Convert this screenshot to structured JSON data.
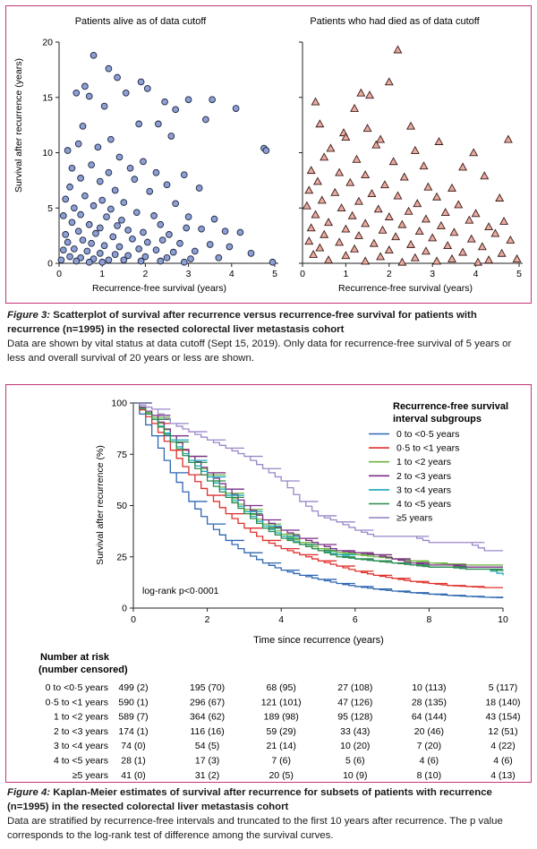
{
  "figure3": {
    "label": "Figure 3:",
    "title": "Scatterplot of survival after recurrence versus recurrence-free survival for patients with recurrence (n=1995) in the resected colorectal liver metastasis cohort",
    "description": "Data are shown by vital status at data cutoff (Sept 15, 2019). Only data for recurrence-free survival of 5 years or less and overall survival of 20 years or less are shown."
  },
  "figure4": {
    "label": "Figure 4:",
    "title": "Kaplan-Meier estimates of survival after recurrence for subsets of patients with recurrence (n=1995) in the resected colorectal liver metastasis cohort",
    "description": "Data are stratified by recurrence-free intervals and truncated to the first 10 years after recurrence. The p value corresponds to the log-rank test of difference among the survival curves."
  },
  "colors": {
    "frame": "#c3347a",
    "alive_fill": "#8e9fd4",
    "dead_fill": "#e9aaa0"
  },
  "chart_data": [
    {
      "type": "scatter",
      "title": "Patients alive as of data cutoff",
      "xlabel": "Recurrence-free survival (years)",
      "ylabel": "Survival after recurrence (years)",
      "xlim": [
        0,
        5
      ],
      "ylim": [
        0,
        20
      ],
      "xticks": [
        0,
        1,
        2,
        3,
        4,
        5
      ],
      "yticks": [
        0,
        5,
        10,
        15,
        20
      ],
      "marker": "circle",
      "points": [
        [
          0.8,
          18.8
        ],
        [
          1.15,
          17.6
        ],
        [
          1.9,
          16.4
        ],
        [
          0.6,
          16.0
        ],
        [
          1.35,
          16.8
        ],
        [
          0.4,
          15.4
        ],
        [
          0.7,
          15.1
        ],
        [
          1.55,
          15.4
        ],
        [
          2.05,
          15.8
        ],
        [
          2.45,
          14.6
        ],
        [
          3.0,
          14.8
        ],
        [
          3.55,
          14.8
        ],
        [
          4.1,
          14.0
        ],
        [
          1.05,
          14.2
        ],
        [
          2.7,
          13.9
        ],
        [
          3.4,
          13.0
        ],
        [
          2.3,
          12.6
        ],
        [
          0.55,
          12.4
        ],
        [
          1.85,
          12.6
        ],
        [
          1.2,
          11.2
        ],
        [
          0.2,
          10.2
        ],
        [
          0.45,
          10.8
        ],
        [
          2.6,
          11.5
        ],
        [
          4.75,
          10.4
        ],
        [
          4.8,
          10.2
        ],
        [
          0.9,
          10.5
        ],
        [
          1.4,
          9.6
        ],
        [
          1.95,
          9.2
        ],
        [
          0.3,
          8.6
        ],
        [
          2.25,
          8.2
        ],
        [
          0.75,
          8.9
        ],
        [
          1.15,
          8.2
        ],
        [
          1.65,
          8.6
        ],
        [
          2.9,
          8.0
        ],
        [
          0.5,
          7.7
        ],
        [
          0.95,
          7.4
        ],
        [
          1.75,
          7.6
        ],
        [
          2.5,
          7.1
        ],
        [
          3.25,
          6.8
        ],
        [
          0.25,
          6.9
        ],
        [
          1.3,
          6.6
        ],
        [
          2.1,
          6.5
        ],
        [
          0.15,
          5.8
        ],
        [
          0.6,
          6.1
        ],
        [
          1.0,
          5.7
        ],
        [
          1.5,
          5.5
        ],
        [
          2.7,
          5.4
        ],
        [
          0.35,
          5.0
        ],
        [
          0.8,
          5.2
        ],
        [
          1.2,
          4.9
        ],
        [
          1.8,
          4.6
        ],
        [
          2.2,
          4.3
        ],
        [
          3.0,
          4.2
        ],
        [
          3.6,
          4.0
        ],
        [
          0.1,
          4.3
        ],
        [
          0.5,
          4.4
        ],
        [
          1.1,
          4.2
        ],
        [
          1.45,
          3.9
        ],
        [
          2.35,
          3.5
        ],
        [
          2.95,
          3.2
        ],
        [
          3.3,
          3.1
        ],
        [
          3.85,
          2.9
        ],
        [
          0.3,
          3.7
        ],
        [
          0.7,
          3.5
        ],
        [
          0.95,
          3.2
        ],
        [
          1.35,
          3.4
        ],
        [
          1.6,
          3.0
        ],
        [
          1.95,
          2.8
        ],
        [
          2.55,
          2.6
        ],
        [
          4.2,
          2.8
        ],
        [
          0.15,
          2.6
        ],
        [
          0.45,
          2.9
        ],
        [
          0.85,
          2.7
        ],
        [
          1.25,
          2.4
        ],
        [
          1.7,
          2.2
        ],
        [
          2.05,
          1.9
        ],
        [
          2.4,
          2.1
        ],
        [
          2.8,
          1.8
        ],
        [
          3.5,
          1.7
        ],
        [
          3.95,
          1.5
        ],
        [
          0.2,
          1.9
        ],
        [
          0.55,
          2.1
        ],
        [
          0.75,
          1.8
        ],
        [
          1.05,
          1.6
        ],
        [
          1.4,
          1.5
        ],
        [
          1.85,
          1.3
        ],
        [
          2.25,
          1.2
        ],
        [
          2.65,
          1.0
        ],
        [
          3.15,
          1.1
        ],
        [
          4.45,
          0.9
        ],
        [
          0.1,
          1.2
        ],
        [
          0.35,
          1.3
        ],
        [
          0.65,
          1.1
        ],
        [
          0.95,
          0.9
        ],
        [
          1.3,
          0.8
        ],
        [
          1.6,
          0.7
        ],
        [
          2.0,
          0.6
        ],
        [
          2.5,
          0.5
        ],
        [
          3.05,
          0.4
        ],
        [
          3.7,
          0.5
        ],
        [
          0.25,
          0.6
        ],
        [
          0.5,
          0.5
        ],
        [
          0.8,
          0.4
        ],
        [
          1.15,
          0.3
        ],
        [
          1.5,
          0.3
        ],
        [
          1.9,
          0.2
        ],
        [
          2.35,
          0.2
        ],
        [
          2.9,
          0.1
        ],
        [
          0.05,
          0.3
        ],
        [
          0.4,
          0.2
        ],
        [
          0.7,
          0.1
        ],
        [
          1.0,
          0.1
        ],
        [
          4.95,
          0.1
        ]
      ]
    },
    {
      "type": "scatter",
      "title": "Patients who had died as of data cutoff",
      "xlabel": "Recurrence-free survival (years)",
      "ylabel": "",
      "xlim": [
        0,
        5
      ],
      "ylim": [
        0,
        20
      ],
      "xticks": [
        0,
        1,
        2,
        3,
        4,
        5
      ],
      "yticks": [
        0,
        5,
        10,
        15,
        20
      ],
      "marker": "triangle",
      "points": [
        [
          2.2,
          19.3
        ],
        [
          2.0,
          16.4
        ],
        [
          1.35,
          15.4
        ],
        [
          1.55,
          15.2
        ],
        [
          0.3,
          14.6
        ],
        [
          1.2,
          14.0
        ],
        [
          0.4,
          12.6
        ],
        [
          1.5,
          12.2
        ],
        [
          2.5,
          12.4
        ],
        [
          0.95,
          11.8
        ],
        [
          1.0,
          11.4
        ],
        [
          1.8,
          11.2
        ],
        [
          3.15,
          11.0
        ],
        [
          4.75,
          11.2
        ],
        [
          0.65,
          10.4
        ],
        [
          1.7,
          10.7
        ],
        [
          2.6,
          10.2
        ],
        [
          3.95,
          10.0
        ],
        [
          0.5,
          9.6
        ],
        [
          1.25,
          9.4
        ],
        [
          2.1,
          9.2
        ],
        [
          2.8,
          8.8
        ],
        [
          3.7,
          8.7
        ],
        [
          0.2,
          8.4
        ],
        [
          0.85,
          8.2
        ],
        [
          1.45,
          8.0
        ],
        [
          2.35,
          7.8
        ],
        [
          4.2,
          7.9
        ],
        [
          0.35,
          7.4
        ],
        [
          1.1,
          7.3
        ],
        [
          1.9,
          7.1
        ],
        [
          2.9,
          6.9
        ],
        [
          3.45,
          6.8
        ],
        [
          0.15,
          6.6
        ],
        [
          0.75,
          6.4
        ],
        [
          1.6,
          6.3
        ],
        [
          2.2,
          6.1
        ],
        [
          3.1,
          6.0
        ],
        [
          4.55,
          5.9
        ],
        [
          0.45,
          5.7
        ],
        [
          1.3,
          5.6
        ],
        [
          2.65,
          5.4
        ],
        [
          3.6,
          5.3
        ],
        [
          0.1,
          5.2
        ],
        [
          0.9,
          5.0
        ],
        [
          1.75,
          4.9
        ],
        [
          2.45,
          4.7
        ],
        [
          3.3,
          4.6
        ],
        [
          4.0,
          4.5
        ],
        [
          0.3,
          4.4
        ],
        [
          1.15,
          4.3
        ],
        [
          2.0,
          4.2
        ],
        [
          2.85,
          4.0
        ],
        [
          3.85,
          3.9
        ],
        [
          4.65,
          3.8
        ],
        [
          0.6,
          3.7
        ],
        [
          1.45,
          3.6
        ],
        [
          2.3,
          3.5
        ],
        [
          3.2,
          3.4
        ],
        [
          4.3,
          3.3
        ],
        [
          0.2,
          3.2
        ],
        [
          1.0,
          3.1
        ],
        [
          1.85,
          3.0
        ],
        [
          2.7,
          2.9
        ],
        [
          3.5,
          2.8
        ],
        [
          4.45,
          2.7
        ],
        [
          0.5,
          2.6
        ],
        [
          1.3,
          2.5
        ],
        [
          2.15,
          2.4
        ],
        [
          3.0,
          2.3
        ],
        [
          3.9,
          2.2
        ],
        [
          4.8,
          2.1
        ],
        [
          0.15,
          2.0
        ],
        [
          0.85,
          1.9
        ],
        [
          1.65,
          1.8
        ],
        [
          2.5,
          1.7
        ],
        [
          3.35,
          1.6
        ],
        [
          4.15,
          1.5
        ],
        [
          0.4,
          1.4
        ],
        [
          1.2,
          1.3
        ],
        [
          2.0,
          1.2
        ],
        [
          2.85,
          1.1
        ],
        [
          3.7,
          1.0
        ],
        [
          4.6,
          0.9
        ],
        [
          0.25,
          0.8
        ],
        [
          1.0,
          0.7
        ],
        [
          1.8,
          0.6
        ],
        [
          2.6,
          0.5
        ],
        [
          3.45,
          0.4
        ],
        [
          4.3,
          0.3
        ],
        [
          4.95,
          0.4
        ],
        [
          0.6,
          0.3
        ],
        [
          1.45,
          0.2
        ],
        [
          2.3,
          0.1
        ],
        [
          3.1,
          0.2
        ],
        [
          4.05,
          0.1
        ]
      ]
    },
    {
      "type": "line",
      "title": "",
      "xlabel": "Time since recurrence (years)",
      "ylabel": "Survival after recurrence (%)",
      "xlim": [
        0,
        10
      ],
      "ylim": [
        0,
        100
      ],
      "xticks": [
        0,
        2,
        4,
        6,
        8,
        10
      ],
      "yticks": [
        0,
        25,
        50,
        75,
        100
      ],
      "legend_title": "Recurrence-free survival interval subgroups",
      "legend_position": "top-right",
      "annotation": "log-rank p<0·0001",
      "x": [
        0,
        0.5,
        1,
        1.5,
        2,
        2.5,
        3,
        3.5,
        4,
        4.5,
        5,
        5.5,
        6,
        6.5,
        7,
        7.5,
        8,
        8.5,
        9,
        9.5,
        10
      ],
      "series": [
        {
          "name": "0 to <0·5 years",
          "color": "#2f67b1",
          "values": [
            100,
            84,
            66,
            52,
            41,
            33,
            27,
            22,
            18.5,
            16,
            14,
            12,
            10.5,
            9.3,
            8.3,
            7.5,
            6.8,
            6.2,
            5.7,
            5.3,
            5
          ]
        },
        {
          "name": "0·5 to <1 years",
          "color": "#e0302b",
          "values": [
            100,
            90,
            77,
            65,
            55,
            46,
            39,
            33,
            29,
            26,
            23,
            20.5,
            18,
            16,
            14.5,
            13,
            12,
            11,
            10.5,
            10,
            10
          ]
        },
        {
          "name": "1 to <2 years",
          "color": "#6db33f",
          "values": [
            100,
            93,
            84,
            74,
            65,
            56,
            48,
            41,
            36,
            32,
            29,
            27,
            26,
            25,
            24,
            23,
            22,
            21.5,
            21,
            21,
            21
          ]
        },
        {
          "name": "2 to <3 years",
          "color": "#7b2f87",
          "values": [
            100,
            94,
            84,
            74,
            66,
            58,
            50,
            43,
            38,
            34,
            31,
            28,
            27,
            26,
            24,
            22,
            21,
            21,
            20,
            20,
            20
          ]
        },
        {
          "name": "3 to <4 years",
          "color": "#1aa9b8",
          "values": [
            100,
            92,
            82,
            72,
            64,
            55,
            47,
            40,
            35,
            31,
            28,
            26,
            24,
            23,
            22,
            21,
            20,
            20,
            19,
            19,
            16
          ]
        },
        {
          "name": "4 to <5 years",
          "color": "#2c8a4a",
          "values": [
            100,
            92,
            81,
            71,
            62,
            54,
            46,
            39,
            34,
            31,
            28,
            25,
            24,
            23,
            22,
            21,
            20,
            20,
            19,
            19,
            18
          ]
        },
        {
          "name": "≥5 years",
          "color": "#9a87c7",
          "values": [
            100,
            97,
            90,
            86,
            82,
            78,
            74,
            68,
            62,
            52,
            45,
            42,
            38,
            35,
            35,
            35,
            32,
            32,
            32,
            28,
            28
          ]
        }
      ]
    }
  ],
  "risk_table": {
    "header": [
      "Number at risk",
      "(number censored)"
    ],
    "rows": [
      {
        "label": "0 to <0·5 years",
        "cells": [
          "499 (2)",
          "195 (70)",
          "68 (95)",
          "27 (108)",
          "10 (113)",
          "5 (117)"
        ]
      },
      {
        "label": "0·5 to <1 years",
        "cells": [
          "590 (1)",
          "296 (67)",
          "121 (101)",
          "47 (126)",
          "28 (135)",
          "18 (140)"
        ]
      },
      {
        "label": "1 to <2 years",
        "cells": [
          "589 (7)",
          "364 (62)",
          "189 (98)",
          "95 (128)",
          "64 (144)",
          "43 (154)"
        ]
      },
      {
        "label": "2 to <3 years",
        "cells": [
          "174 (1)",
          "116 (16)",
          "59 (29)",
          "33 (43)",
          "20 (46)",
          "12 (51)"
        ]
      },
      {
        "label": "3 to <4 years",
        "cells": [
          "74 (0)",
          "54 (5)",
          "21 (14)",
          "10 (20)",
          "7 (20)",
          "4 (22)"
        ]
      },
      {
        "label": "4 to <5 years",
        "cells": [
          "28 (1)",
          "17 (3)",
          "7 (6)",
          "5 (6)",
          "4 (6)",
          "4 (6)"
        ]
      },
      {
        "label": "≥5 years",
        "cells": [
          "41 (0)",
          "31 (2)",
          "20 (5)",
          "10 (9)",
          "8 (10)",
          "4 (13)"
        ]
      }
    ]
  }
}
